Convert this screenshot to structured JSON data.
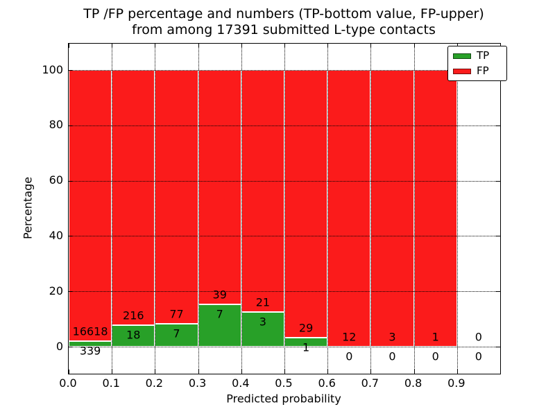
{
  "title": {
    "line1": "TP /FP percentage and numbers (TP-bottom value, FP-upper)",
    "line2": "from among 17391 submitted L-type contacts"
  },
  "axes": {
    "xlabel": "Predicted probability",
    "ylabel": "Percentage"
  },
  "colors": {
    "tp_green": "#28a028",
    "fp_red": "#fb1b1b",
    "frame": "#000000",
    "background": "#ffffff"
  },
  "chart_data": {
    "type": "bar",
    "stacked": true,
    "title": "TP /FP percentage and numbers (TP-bottom value, FP-upper) from among 17391 submitted L-type contacts",
    "xlabel": "Predicted probability",
    "ylabel": "Percentage",
    "bin_starts": [
      0.0,
      0.1,
      0.2,
      0.3,
      0.4,
      0.5,
      0.6,
      0.7,
      0.8,
      0.9
    ],
    "bin_width": 0.1,
    "xtick_labels": [
      "0.0",
      "0.1",
      "0.2",
      "0.3",
      "0.4",
      "0.5",
      "0.6",
      "0.7",
      "0.8",
      "0.9"
    ],
    "yticks": [
      0,
      20,
      40,
      60,
      80,
      100
    ],
    "xlim": [
      0.0,
      1.0
    ],
    "ylim": [
      -10,
      110
    ],
    "grid": "dotted",
    "legend_position": "upper right",
    "bar_totals_normalized_to": 100,
    "series": [
      {
        "name": "TP",
        "color": "#28a028",
        "counts": [
          339,
          18,
          7,
          7,
          3,
          1,
          0,
          0,
          0,
          0
        ]
      },
      {
        "name": "FP",
        "color": "#fb1b1b",
        "counts": [
          16618,
          216,
          77,
          39,
          21,
          29,
          12,
          3,
          1,
          0
        ]
      }
    ],
    "tp_percent_of_bin": [
      2.0,
      7.69,
      8.33,
      15.22,
      12.5,
      3.33,
      0,
      0,
      0,
      null
    ],
    "fp_percent_of_bin": [
      98.0,
      92.31,
      91.67,
      84.78,
      87.5,
      96.67,
      100,
      100,
      100,
      null
    ]
  }
}
